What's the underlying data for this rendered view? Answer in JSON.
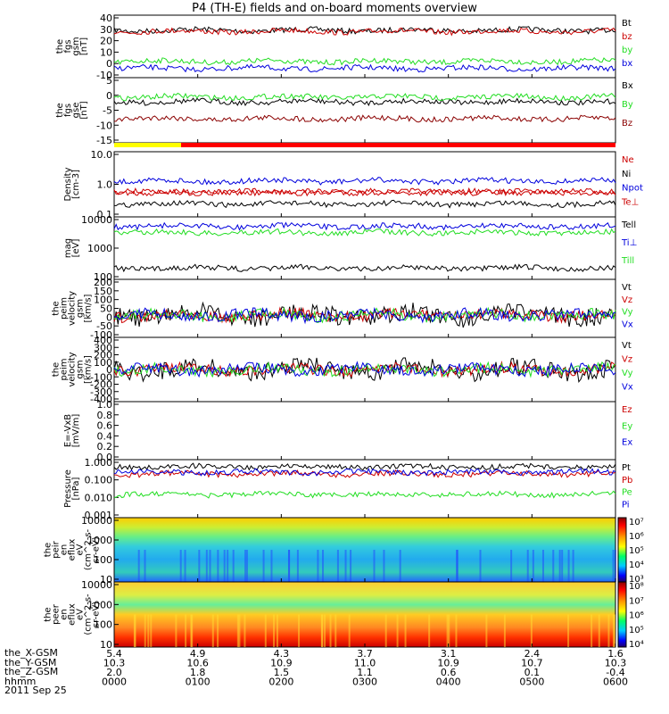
{
  "title": "P4 (TH-E) fields and on-board moments overview",
  "date": "2011 Sep 25",
  "colors": {
    "black": "#000000",
    "red": "#cc0000",
    "green": "#22dd22",
    "blue": "#0000dd",
    "yellow": "#ffff00",
    "darkred": "#8b0000"
  },
  "chart_data": [
    {
      "type": "line",
      "name": "fgs gsm",
      "ylabel": [
        "the",
        "fgs",
        "gsm",
        "[nT]"
      ],
      "yticks": [
        "40",
        "30",
        "20",
        "10",
        "0",
        "-10"
      ],
      "ylim": [
        -12,
        42
      ],
      "series": [
        {
          "name": "Bt",
          "color": "#000000",
          "level": 29
        },
        {
          "name": "bz",
          "color": "#cc0000",
          "level": 28
        },
        {
          "name": "by",
          "color": "#22dd22",
          "level": 2
        },
        {
          "name": "bx",
          "color": "#0000dd",
          "level": -4
        }
      ]
    },
    {
      "type": "line",
      "name": "fgs gse",
      "ylabel": [
        "the",
        "fgs",
        "gse",
        "[nT]"
      ],
      "yticks": [
        "5",
        "0",
        "-5",
        "-10",
        "-15"
      ],
      "ylim": [
        -18,
        9
      ],
      "series": [
        {
          "name": "Bx",
          "color": "#000000",
          "level": -1
        },
        {
          "name": "By",
          "color": "#22dd22",
          "level": 1
        },
        {
          "name": "Bz",
          "color": "#8b0000",
          "level": -8
        }
      ]
    },
    {
      "type": "line",
      "name": "density",
      "ylabel": [
        "Density",
        "[cm-3]"
      ],
      "yticks": [
        "10.0",
        "1.0",
        "0.1"
      ],
      "log": true,
      "series": [
        {
          "name": "Ne",
          "color": "#cc0000",
          "level": 1.5
        },
        {
          "name": "Ni",
          "color": "#000000",
          "level": 0.4
        },
        {
          "name": "Npot",
          "color": "#0000dd",
          "level": 3
        },
        {
          "name": "Te⊥",
          "color": "#cc0000"
        }
      ]
    },
    {
      "type": "line",
      "name": "temperature",
      "ylabel": [
        "mag",
        "[eV]"
      ],
      "yticks": [
        "10000",
        "1000",
        "100"
      ],
      "log": true,
      "series": [
        {
          "name": "Tell",
          "color": "#000000",
          "level": 80
        },
        {
          "name": "Ti⊥",
          "color": "#0000dd",
          "level": 4000
        },
        {
          "name": "Till",
          "color": "#22dd22",
          "level": 2500
        }
      ]
    },
    {
      "type": "line",
      "name": "peim velocity",
      "ylabel": [
        "the",
        "peim",
        "velocity",
        "gsm",
        "[km/s]"
      ],
      "yticks": [
        "200",
        "150",
        "100",
        "50",
        "0",
        "-50",
        "-100"
      ],
      "ylim": [
        -130,
        210
      ],
      "series": [
        {
          "name": "Vt",
          "color": "#000000"
        },
        {
          "name": "Vz",
          "color": "#cc0000"
        },
        {
          "name": "Vy",
          "color": "#22dd22"
        },
        {
          "name": "Vx",
          "color": "#0000dd"
        }
      ]
    },
    {
      "type": "line",
      "name": "peim velocity 2",
      "ylabel": [
        "the",
        "peim",
        "velocity",
        "gsm",
        "[km/s]"
      ],
      "yticks": [
        "400",
        "300",
        "200",
        "100",
        "0",
        "-100",
        "-200",
        "-300",
        "-400"
      ],
      "ylim": [
        -420,
        420
      ],
      "series": [
        {
          "name": "Vt",
          "color": "#000000"
        },
        {
          "name": "Vz",
          "color": "#cc0000"
        },
        {
          "name": "Vy",
          "color": "#22dd22"
        },
        {
          "name": "Vx",
          "color": "#0000dd"
        }
      ]
    },
    {
      "type": "line",
      "name": "E = -VxB",
      "ylabel": [
        "E=-VxB",
        "[mV/m]"
      ],
      "yticks": [
        "1.0",
        "0.8",
        "0.6",
        "0.4",
        "0.2",
        "0.0"
      ],
      "ylim": [
        0,
        1
      ],
      "series": [
        {
          "name": "Ez",
          "color": "#cc0000"
        },
        {
          "name": "Ey",
          "color": "#22dd22"
        },
        {
          "name": "Ex",
          "color": "#0000dd"
        }
      ]
    },
    {
      "type": "line",
      "name": "pressure",
      "ylabel": [
        "Pressure",
        "[nPa]"
      ],
      "yticks": [
        "1.000",
        "0.100",
        "0.010",
        "0.001"
      ],
      "log": true,
      "series": [
        {
          "name": "Pt",
          "color": "#000000"
        },
        {
          "name": "Pb",
          "color": "#cc0000"
        },
        {
          "name": "Pe",
          "color": "#22dd22"
        },
        {
          "name": "Pi",
          "color": "#0000dd"
        }
      ]
    },
    {
      "type": "heatmap",
      "name": "peir en eflux",
      "ylabel": [
        "the",
        "peir",
        "en",
        "eflux",
        "eV",
        "(cm^2-s-",
        "sr-eV)"
      ],
      "yticks": [
        "10000",
        "1000",
        "100",
        "10"
      ],
      "colorbar": [
        "10⁷",
        "10⁶",
        "10⁵",
        "10⁴",
        "10³"
      ]
    },
    {
      "type": "heatmap",
      "name": "peer en eflux",
      "ylabel": [
        "the",
        "peer",
        "en",
        "eflux",
        "eV",
        "(cm^2-s-",
        "sr-eV)"
      ],
      "yticks": [
        "10000",
        "1000",
        "100",
        "10"
      ],
      "colorbar": [
        "10⁸",
        "10⁷",
        "10⁶",
        "10⁵",
        "10⁴"
      ]
    }
  ],
  "x_axis": {
    "rows": [
      {
        "label": "the_X-GSM",
        "values": [
          "5.4",
          "4.9",
          "4.3",
          "3.7",
          "3.1",
          "2.4",
          "1.6"
        ]
      },
      {
        "label": "the_Y-GSM",
        "values": [
          "10.3",
          "10.6",
          "10.9",
          "11.0",
          "10.9",
          "10.7",
          "10.3"
        ]
      },
      {
        "label": "the_Z-GSM",
        "values": [
          "2.0",
          "1.8",
          "1.5",
          "1.1",
          "0.6",
          "0.1",
          "-0.4"
        ]
      },
      {
        "label": "hhmm",
        "values": [
          "0000",
          "0100",
          "0200",
          "0300",
          "0400",
          "0500",
          "0600"
        ]
      }
    ]
  }
}
